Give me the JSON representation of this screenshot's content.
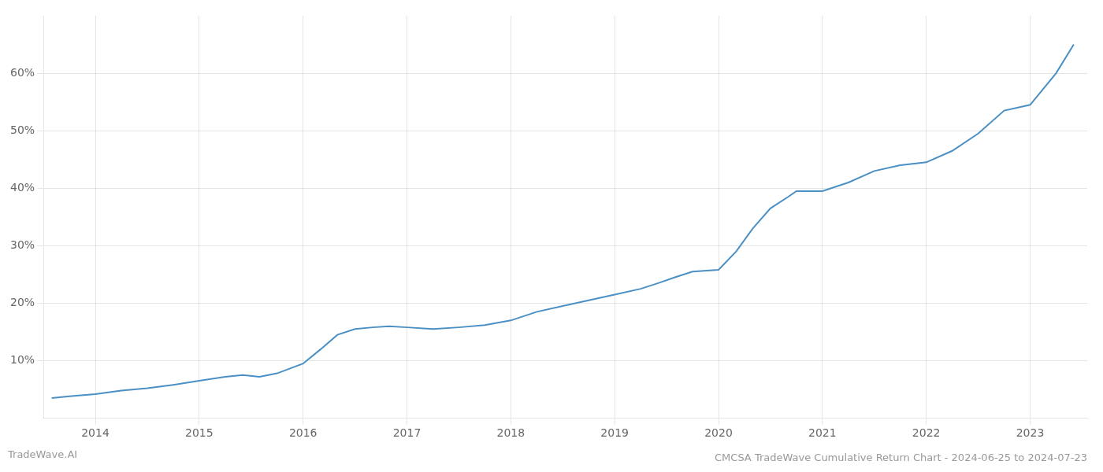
{
  "chart_data": {
    "type": "line",
    "title": "CMCSA TradeWave Cumulative Return Chart - 2024-06-25 to 2024-07-23",
    "annotations": [
      "TradeWave.AI"
    ],
    "x": [
      2013.58,
      2013.75,
      2014.0,
      2014.25,
      2014.5,
      2014.75,
      2015.0,
      2015.25,
      2015.42,
      2015.58,
      2015.75,
      2016.0,
      2016.17,
      2016.33,
      2016.5,
      2016.67,
      2016.83,
      2017.0,
      2017.25,
      2017.5,
      2017.75,
      2018.0,
      2018.25,
      2018.5,
      2018.75,
      2019.0,
      2019.25,
      2019.42,
      2019.58,
      2019.75,
      2020.0,
      2020.17,
      2020.33,
      2020.5,
      2020.67,
      2020.75,
      2021.0,
      2021.25,
      2021.5,
      2021.75,
      2022.0,
      2022.25,
      2022.5,
      2022.75,
      2023.0,
      2023.25,
      2023.42
    ],
    "values": [
      3.5,
      3.8,
      4.2,
      4.8,
      5.2,
      5.8,
      6.5,
      7.2,
      7.5,
      7.2,
      7.8,
      9.5,
      12.0,
      14.5,
      15.5,
      15.8,
      16.0,
      15.8,
      15.5,
      15.8,
      16.2,
      17.0,
      18.5,
      19.5,
      20.5,
      21.5,
      22.5,
      23.5,
      24.5,
      25.5,
      25.8,
      29.0,
      33.0,
      36.5,
      38.5,
      39.5,
      39.5,
      41.0,
      43.0,
      44.0,
      44.5,
      46.5,
      49.5,
      53.5,
      54.5,
      60.0,
      65.0
    ],
    "color": "#4a90c4",
    "xlim": [
      2013.5,
      2023.55
    ],
    "xticks": [
      2014,
      2015,
      2016,
      2017,
      2018,
      2019,
      2020,
      2021,
      2022,
      2023
    ],
    "ylim": [
      0,
      70
    ],
    "yticks": [
      {
        "value": 10,
        "label": "10%"
      },
      {
        "value": 20,
        "label": "20%"
      },
      {
        "value": 30,
        "label": "30%"
      },
      {
        "value": 40,
        "label": "40%"
      },
      {
        "value": 50,
        "label": "50%"
      },
      {
        "value": 60,
        "label": "60%"
      }
    ],
    "grid": true
  }
}
